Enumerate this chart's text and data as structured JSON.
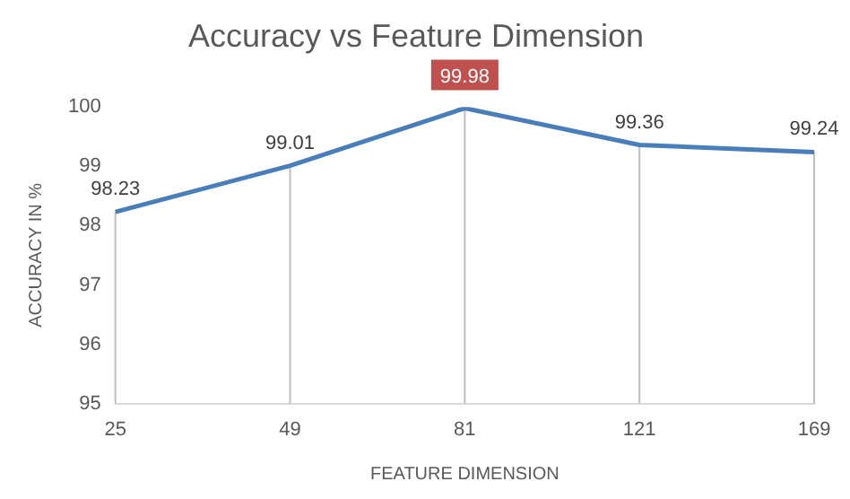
{
  "chart_data": {
    "type": "line",
    "title": "Accuracy vs Feature Dimension",
    "xlabel": "FEATURE DIMENSION",
    "ylabel": "ACCURACY IN %",
    "categories": [
      "25",
      "49",
      "81",
      "121",
      "169"
    ],
    "series": [
      {
        "color": "#4a7ebb",
        "values": [
          98.23,
          99.01,
          99.98,
          99.36,
          99.24
        ],
        "value_labels": [
          "98.23",
          "99.01",
          null,
          "99.36",
          "99.24"
        ]
      }
    ],
    "annotations": [
      {
        "text": "99.98",
        "x": "81",
        "y": 99.98
      }
    ],
    "ylim": [
      95,
      100
    ],
    "yticks": [
      95,
      96,
      97,
      98,
      99,
      100
    ],
    "grid": "x",
    "legend": false,
    "marker": "none",
    "line_style": "solid"
  }
}
